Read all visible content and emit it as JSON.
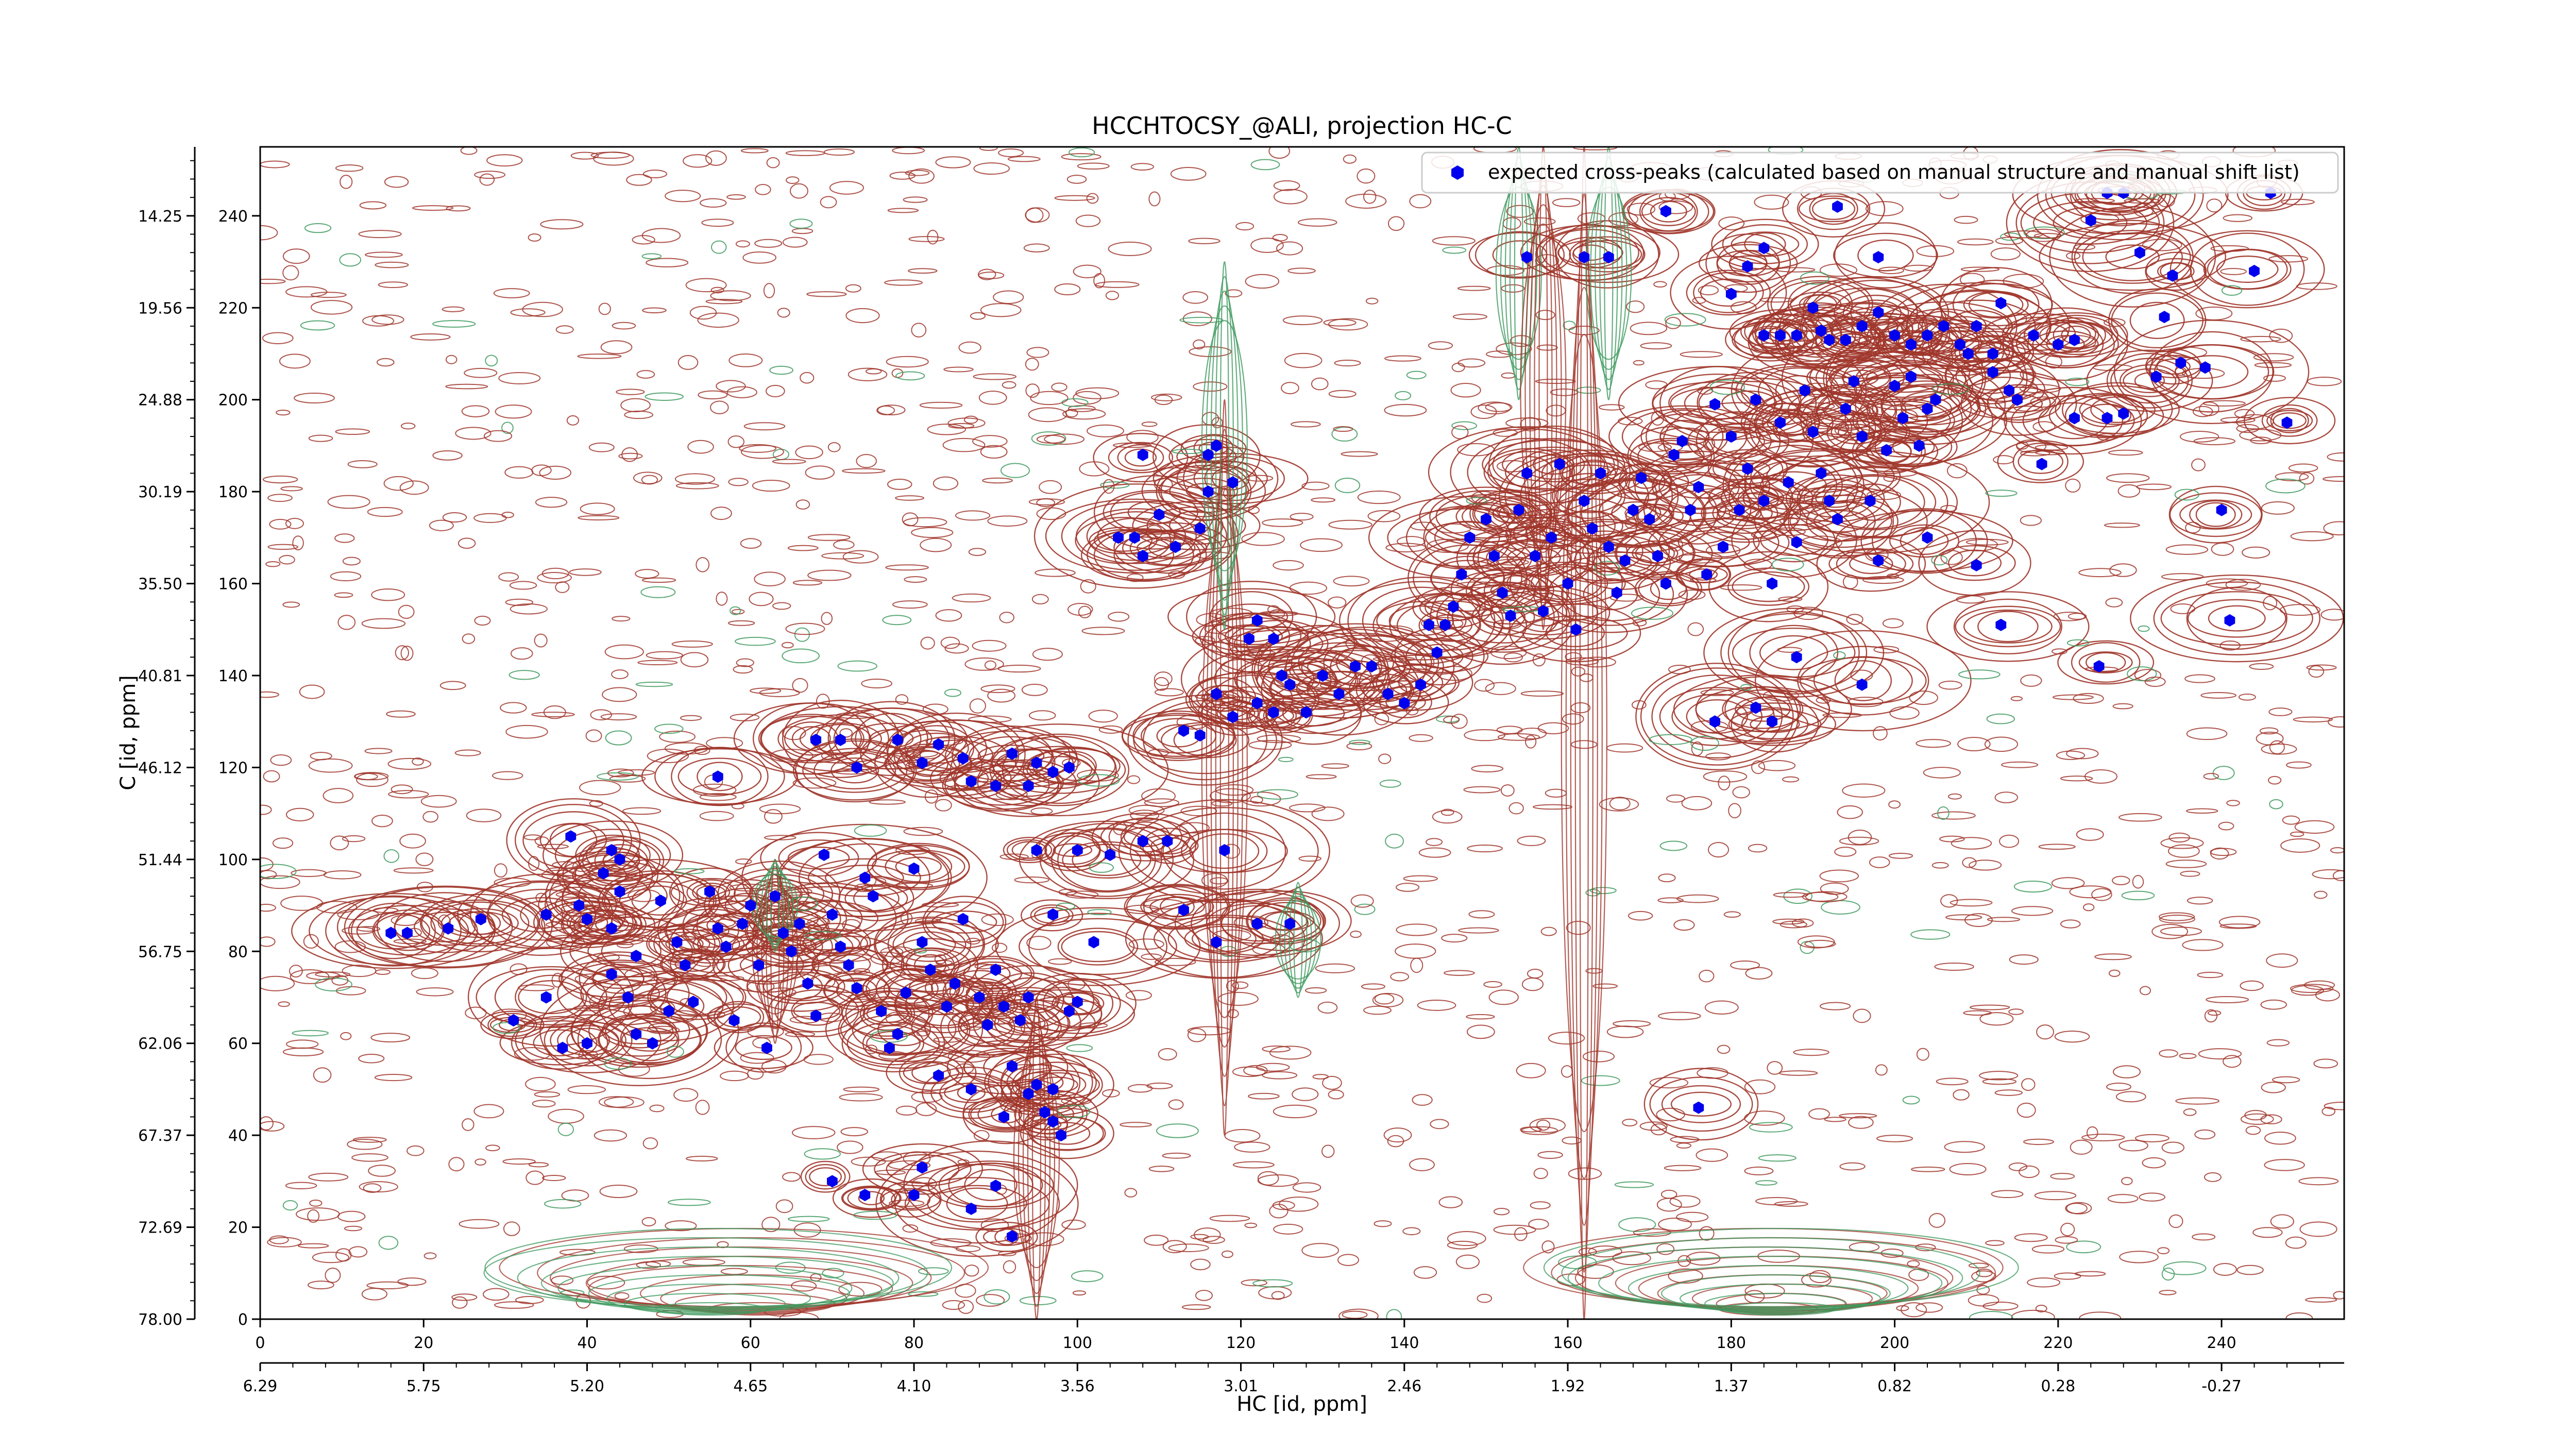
{
  "chart_data": {
    "type": "contour",
    "title": "HCCHTOCSY_@ALI, projection HC-C",
    "xlabel": "HC [id, ppm]",
    "ylabel": "C [id, ppm]",
    "x_index_ticks": [
      "0",
      "20",
      "40",
      "60",
      "80",
      "100",
      "120",
      "140",
      "160",
      "180",
      "200",
      "220",
      "240"
    ],
    "x_ppm_ticks": [
      "6.29",
      "5.75",
      "5.20",
      "4.65",
      "4.10",
      "3.56",
      "3.01",
      "2.46",
      "1.92",
      "1.37",
      "0.82",
      "0.28",
      "-0.27"
    ],
    "y_index_ticks": [
      "0",
      "20",
      "40",
      "60",
      "80",
      "100",
      "120",
      "140",
      "160",
      "180",
      "200",
      "220",
      "240"
    ],
    "y_ppm_ticks": [
      "78.00",
      "72.69",
      "67.37",
      "62.06",
      "56.75",
      "51.44",
      "46.12",
      "40.81",
      "35.50",
      "30.19",
      "24.88",
      "19.56",
      "14.25"
    ],
    "xlim_index": [
      0,
      255
    ],
    "ylim_index": [
      0,
      255
    ],
    "legend": {
      "position": "top-right",
      "label": "expected cross-peaks (calculated based on manual structure and manual shift list)"
    },
    "colors": {
      "positive_contour": "#a0362b",
      "negative_contour": "#3f9a5f",
      "marker": "#0000ee"
    },
    "series": [
      {
        "name": "expected cross-peaks (calculated based on manual structure and manual shift list)",
        "marker": "hexagon",
        "points": [
          [
            16,
            84
          ],
          [
            18,
            84
          ],
          [
            23,
            85
          ],
          [
            27,
            87
          ],
          [
            31,
            65
          ],
          [
            35,
            70
          ],
          [
            35,
            88
          ],
          [
            38,
            105
          ],
          [
            39,
            90
          ],
          [
            37,
            59
          ],
          [
            40,
            60
          ],
          [
            40,
            87
          ],
          [
            42,
            97
          ],
          [
            43,
            102
          ],
          [
            43,
            85
          ],
          [
            43,
            75
          ],
          [
            44,
            93
          ],
          [
            44,
            100
          ],
          [
            45,
            70
          ],
          [
            46,
            62
          ],
          [
            46,
            79
          ],
          [
            48,
            60
          ],
          [
            49,
            91
          ],
          [
            50,
            67
          ],
          [
            51,
            82
          ],
          [
            52,
            77
          ],
          [
            53,
            69
          ],
          [
            55,
            93
          ],
          [
            56,
            85
          ],
          [
            57,
            81
          ],
          [
            58,
            65
          ],
          [
            59,
            86
          ],
          [
            60,
            90
          ],
          [
            61,
            77
          ],
          [
            62,
            59
          ],
          [
            63,
            92
          ],
          [
            64,
            84
          ],
          [
            65,
            80
          ],
          [
            66,
            86
          ],
          [
            67,
            73
          ],
          [
            68,
            66
          ],
          [
            69,
            101
          ],
          [
            70,
            88
          ],
          [
            71,
            81
          ],
          [
            72,
            77
          ],
          [
            73,
            72
          ],
          [
            74,
            96
          ],
          [
            75,
            92
          ],
          [
            76,
            67
          ],
          [
            77,
            59
          ],
          [
            78,
            62
          ],
          [
            79,
            71
          ],
          [
            80,
            98
          ],
          [
            81,
            82
          ],
          [
            82,
            76
          ],
          [
            83,
            53
          ],
          [
            84,
            68
          ],
          [
            85,
            73
          ],
          [
            86,
            87
          ],
          [
            87,
            50
          ],
          [
            88,
            70
          ],
          [
            89,
            64
          ],
          [
            90,
            76
          ],
          [
            91,
            68
          ],
          [
            92,
            55
          ],
          [
            93,
            65
          ],
          [
            94,
            70
          ],
          [
            94,
            49
          ],
          [
            95,
            51
          ],
          [
            96,
            45
          ],
          [
            97,
            50
          ],
          [
            98,
            40
          ],
          [
            99,
            67
          ],
          [
            100,
            69
          ],
          [
            56,
            118
          ],
          [
            68,
            126
          ],
          [
            71,
            126
          ],
          [
            73,
            120
          ],
          [
            78,
            126
          ],
          [
            81,
            121
          ],
          [
            83,
            125
          ],
          [
            86,
            122
          ],
          [
            87,
            117
          ],
          [
            90,
            116
          ],
          [
            92,
            123
          ],
          [
            94,
            116
          ],
          [
            95,
            121
          ],
          [
            97,
            119
          ],
          [
            99,
            120
          ],
          [
            70,
            30
          ],
          [
            74,
            27
          ],
          [
            80,
            27
          ],
          [
            81,
            33
          ],
          [
            87,
            24
          ],
          [
            90,
            29
          ],
          [
            91,
            44
          ],
          [
            92,
            18
          ],
          [
            97,
            43
          ],
          [
            95,
            102
          ],
          [
            97,
            88
          ],
          [
            100,
            102
          ],
          [
            102,
            82
          ],
          [
            104,
            101
          ],
          [
            108,
            104
          ],
          [
            111,
            104
          ],
          [
            113,
            89
          ],
          [
            117,
            82
          ],
          [
            118,
            102
          ],
          [
            122,
            86
          ],
          [
            126,
            86
          ],
          [
            108,
            188
          ],
          [
            105,
            170
          ],
          [
            107,
            170
          ],
          [
            108,
            166
          ],
          [
            110,
            175
          ],
          [
            112,
            168
          ],
          [
            115,
            172
          ],
          [
            116,
            188
          ],
          [
            116,
            180
          ],
          [
            117,
            190
          ],
          [
            119,
            182
          ],
          [
            121,
            148
          ],
          [
            122,
            152
          ],
          [
            124,
            148
          ],
          [
            113,
            128
          ],
          [
            115,
            127
          ],
          [
            117,
            136
          ],
          [
            119,
            131
          ],
          [
            122,
            134
          ],
          [
            124,
            132
          ],
          [
            125,
            140
          ],
          [
            126,
            138
          ],
          [
            128,
            132
          ],
          [
            130,
            140
          ],
          [
            132,
            136
          ],
          [
            134,
            142
          ],
          [
            136,
            142
          ],
          [
            138,
            136
          ],
          [
            140,
            134
          ],
          [
            142,
            138
          ],
          [
            143,
            151
          ],
          [
            144,
            145
          ],
          [
            145,
            151
          ],
          [
            146,
            155
          ],
          [
            147,
            162
          ],
          [
            148,
            170
          ],
          [
            150,
            174
          ],
          [
            151,
            166
          ],
          [
            152,
            158
          ],
          [
            153,
            153
          ],
          [
            154,
            176
          ],
          [
            155,
            184
          ],
          [
            156,
            166
          ],
          [
            157,
            154
          ],
          [
            158,
            170
          ],
          [
            159,
            186
          ],
          [
            160,
            160
          ],
          [
            161,
            150
          ],
          [
            162,
            178
          ],
          [
            163,
            172
          ],
          [
            164,
            184
          ],
          [
            165,
            168
          ],
          [
            166,
            158
          ],
          [
            167,
            165
          ],
          [
            168,
            176
          ],
          [
            169,
            183
          ],
          [
            170,
            174
          ],
          [
            171,
            166
          ],
          [
            172,
            160
          ],
          [
            173,
            188
          ],
          [
            174,
            191
          ],
          [
            175,
            176
          ],
          [
            176,
            181
          ],
          [
            177,
            162
          ],
          [
            178,
            199
          ],
          [
            179,
            168
          ],
          [
            180,
            192
          ],
          [
            181,
            176
          ],
          [
            182,
            185
          ],
          [
            183,
            200
          ],
          [
            184,
            178
          ],
          [
            185,
            160
          ],
          [
            186,
            195
          ],
          [
            187,
            182
          ],
          [
            188,
            169
          ],
          [
            189,
            202
          ],
          [
            190,
            193
          ],
          [
            191,
            184
          ],
          [
            192,
            178
          ],
          [
            193,
            174
          ],
          [
            194,
            198
          ],
          [
            195,
            204
          ],
          [
            196,
            192
          ],
          [
            197,
            178
          ],
          [
            198,
            165
          ],
          [
            199,
            189
          ],
          [
            200,
            203
          ],
          [
            201,
            196
          ],
          [
            202,
            205
          ],
          [
            203,
            190
          ],
          [
            204,
            198
          ],
          [
            178,
            130
          ],
          [
            183,
            133
          ],
          [
            185,
            130
          ],
          [
            176,
            46
          ],
          [
            180,
            223
          ],
          [
            182,
            229
          ],
          [
            184,
            214
          ],
          [
            186,
            214
          ],
          [
            188,
            214
          ],
          [
            190,
            220
          ],
          [
            191,
            215
          ],
          [
            192,
            213
          ],
          [
            194,
            213
          ],
          [
            196,
            216
          ],
          [
            198,
            219
          ],
          [
            200,
            214
          ],
          [
            202,
            212
          ],
          [
            204,
            214
          ],
          [
            206,
            216
          ],
          [
            208,
            212
          ],
          [
            210,
            216
          ],
          [
            212,
            206
          ],
          [
            213,
            221
          ],
          [
            217,
            214
          ],
          [
            220,
            212
          ],
          [
            222,
            213
          ],
          [
            224,
            239
          ],
          [
            226,
            245
          ],
          [
            228,
            245
          ],
          [
            230,
            232
          ],
          [
            233,
            218
          ],
          [
            235,
            208
          ],
          [
            155,
            231
          ],
          [
            162,
            231
          ],
          [
            165,
            231
          ],
          [
            172,
            241
          ],
          [
            184,
            233
          ],
          [
            193,
            242
          ],
          [
            198,
            231
          ],
          [
            205,
            200
          ],
          [
            209,
            210
          ],
          [
            212,
            210
          ],
          [
            214,
            202
          ],
          [
            215,
            200
          ],
          [
            218,
            186
          ],
          [
            222,
            196
          ],
          [
            226,
            196
          ],
          [
            228,
            197
          ],
          [
            232,
            205
          ],
          [
            234,
            227
          ],
          [
            240,
            176
          ],
          [
            238,
            207
          ],
          [
            244,
            228
          ],
          [
            246,
            245
          ],
          [
            241,
            152
          ],
          [
            248,
            195
          ],
          [
            204,
            170
          ],
          [
            210,
            164
          ],
          [
            213,
            151
          ],
          [
            225,
            142
          ],
          [
            196,
            138
          ],
          [
            188,
            144
          ]
        ]
      }
    ]
  }
}
